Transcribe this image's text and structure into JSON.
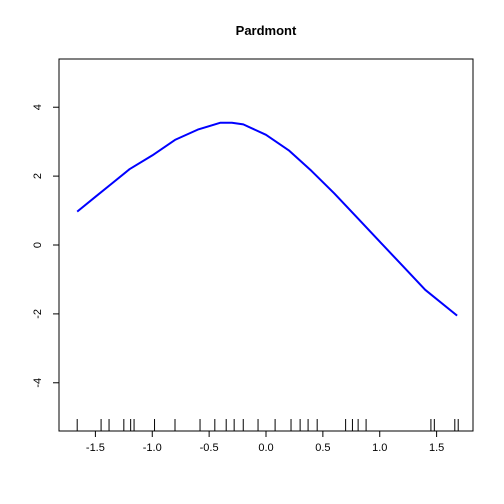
{
  "chart_data": {
    "type": "line",
    "title": "Pardmont",
    "xlabel": "",
    "ylabel": "",
    "xlim": [
      -1.82,
      1.82
    ],
    "ylim": [
      -5.4,
      5.4
    ],
    "x_ticks": [
      -1.5,
      -1.0,
      -0.5,
      0.0,
      0.5,
      1.0,
      1.5
    ],
    "x_tick_labels": [
      "-1.5",
      "-1.0",
      "-0.5",
      "0.0",
      "0.5",
      "1.0",
      "1.5"
    ],
    "y_ticks": [
      -4,
      -2,
      0,
      2,
      4
    ],
    "y_tick_labels": [
      "-4",
      "-2",
      "0",
      "2",
      "4"
    ],
    "grid": false,
    "legend": "none",
    "line_color": "#0000ff",
    "series": [
      {
        "x": [
          -1.66,
          -1.5,
          -1.35,
          -1.2,
          -1.0,
          -0.8,
          -0.6,
          -0.4,
          -0.3,
          -0.2,
          0.0,
          0.2,
          0.4,
          0.6,
          0.8,
          1.0,
          1.2,
          1.4,
          1.68
        ],
        "values": [
          0.97,
          1.4,
          1.8,
          2.2,
          2.6,
          3.05,
          3.35,
          3.55,
          3.55,
          3.5,
          3.2,
          2.75,
          2.15,
          1.5,
          0.8,
          0.1,
          -0.6,
          -1.3,
          -2.05
        ]
      }
    ],
    "rug": [
      -1.66,
      -1.45,
      -1.38,
      -1.25,
      -1.19,
      -1.16,
      -0.98,
      -0.8,
      -0.58,
      -0.45,
      -0.35,
      -0.28,
      -0.2,
      -0.07,
      0.08,
      0.22,
      0.3,
      0.37,
      0.45,
      0.7,
      0.76,
      0.81,
      0.88,
      1.45,
      1.48,
      1.66,
      1.69
    ]
  }
}
